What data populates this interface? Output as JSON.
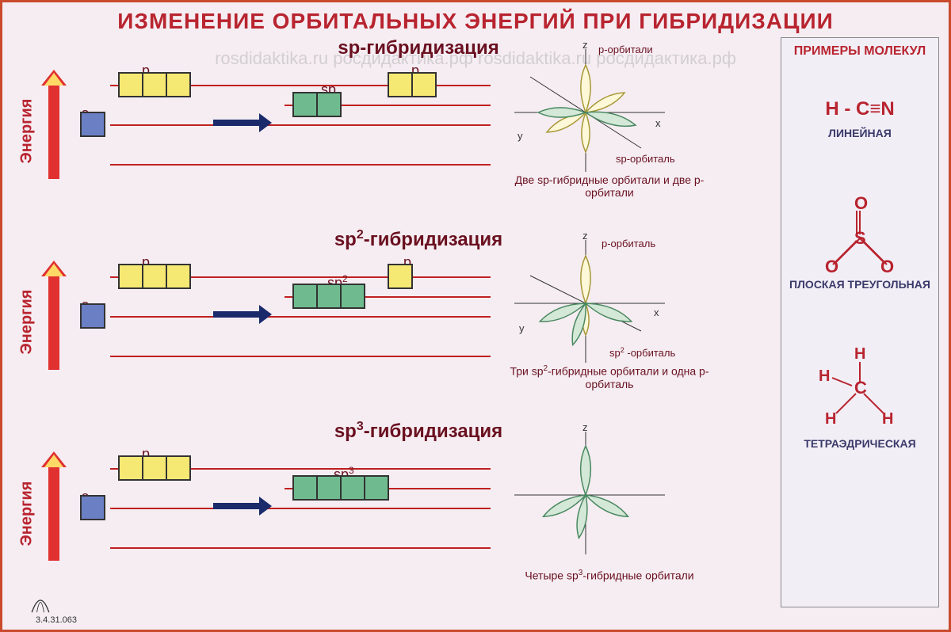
{
  "title": "ИЗМЕНЕНИЕ ОРБИТАЛЬНЫХ ЭНЕРГИЙ ПРИ ГИБРИДИЗАЦИИ",
  "watermark": "rosdidaktika.ru росдидактика.рф rosdidaktika.ru росдидактика.рф",
  "energy_label": "Энергия",
  "footer_code": "3.4.31.063",
  "sidebar": {
    "title": "ПРИМЕРЫ МОЛЕКУЛ",
    "molecules": [
      {
        "formula": "H - C≡N",
        "label": "ЛИНЕЙНАЯ"
      },
      {
        "formula_svg": true,
        "so2": {
          "s": "S",
          "o": "O"
        },
        "label": "ПЛОСКАЯ ТРЕУГОЛЬНАЯ"
      },
      {
        "formula_svg": true,
        "ch4": {
          "c": "C",
          "h": "H"
        },
        "label": "ТЕТРАЭДРИЧЕСКАЯ"
      }
    ]
  },
  "rows": [
    {
      "title_plain": "sp-гибридизация",
      "sup": "",
      "labels": {
        "s": "s",
        "p": "p",
        "hyb": "sp",
        "p2": "p"
      },
      "p_before": 3,
      "hyb_count": 2,
      "p_after": 2,
      "orbital_caption": "Две sp-гибридные орбитали и две р-орбитали",
      "axis_labels": {
        "z": "z",
        "y": "y",
        "x": "x",
        "p": "р-орбитали",
        "sp": "sp-орбиталь"
      }
    },
    {
      "title_plain": "sp",
      "sup": "2",
      "title_suffix": "-гибридизация",
      "labels": {
        "s": "s",
        "p": "p",
        "hyb": "sp",
        "hyb_sup": "2",
        "p2": "p"
      },
      "p_before": 3,
      "hyb_count": 3,
      "p_after": 1,
      "orbital_caption_pre": "Три sp",
      "orbital_caption_sup": "2",
      "orbital_caption_post": "-гибридные орбитали и одна р-орбиталь",
      "axis_labels": {
        "z": "z",
        "y": "y",
        "x": "x",
        "p": "р-орбиталь",
        "sp_pre": "sp",
        "sp_sup": "2",
        "sp_post": " -орбиталь"
      }
    },
    {
      "title_plain": "sp",
      "sup": "3",
      "title_suffix": "-гибридизация",
      "labels": {
        "s": "s",
        "p": "p",
        "hyb": "sp",
        "hyb_sup": "3"
      },
      "p_before": 3,
      "hyb_count": 4,
      "p_after": 0,
      "orbital_caption_pre": "Четыре sp",
      "orbital_caption_sup": "3",
      "orbital_caption_post": "-гибридные орбитали",
      "axis_labels": {
        "z": "z"
      }
    }
  ],
  "colors": {
    "border": "#c94a2c",
    "title": "#b8242f",
    "bg": "#f5edf2",
    "line": "#c02020",
    "s_box": "#6b7fc4",
    "p_box": "#f5e873",
    "h_box": "#6fbb8f",
    "lobe_p": "#fdf8d8",
    "lobe_p_stroke": "#a89838",
    "lobe_sp": "#d4e8d8",
    "lobe_sp_stroke": "#4a8860"
  }
}
